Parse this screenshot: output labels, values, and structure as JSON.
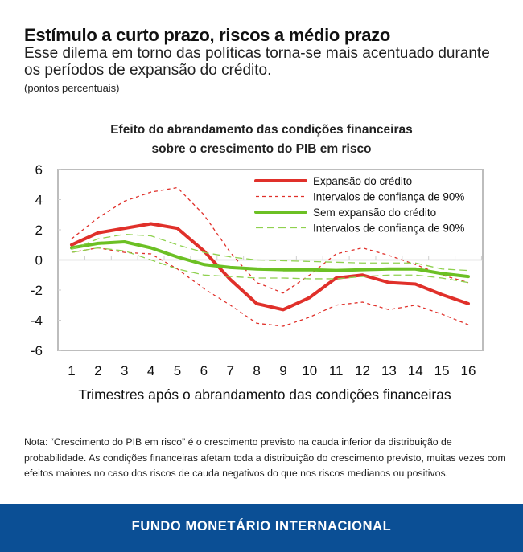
{
  "header": {
    "title": "Estímulo a curto prazo, riscos a médio prazo",
    "subtitle": "Esse dilema em torno das políticas torna-se mais acentuado durante os períodos de expansão do crédito.",
    "units": "(pontos percentuais)"
  },
  "chart_data": {
    "type": "line",
    "title_line1": "Efeito do abrandamento das condições financeiras",
    "title_line2": "sobre o crescimento do PIB em risco",
    "xlabel": "Trimestres após o abrandamento das condições financeiras",
    "ylabel": "",
    "x": [
      1,
      2,
      3,
      4,
      5,
      6,
      7,
      8,
      9,
      10,
      11,
      12,
      13,
      14,
      15,
      16
    ],
    "x_ticks": [
      "1",
      "2",
      "3",
      "4",
      "5",
      "6",
      "7",
      "8",
      "9",
      "10",
      "11",
      "12",
      "13",
      "14",
      "15",
      "16"
    ],
    "ylim": [
      -6,
      6
    ],
    "y_ticks": [
      "6",
      "4",
      "2",
      "0",
      "-2",
      "-4",
      "-6"
    ],
    "y_tick_values": [
      6,
      4,
      2,
      0,
      -2,
      -4,
      -6
    ],
    "legend_position": "top-right",
    "series": [
      {
        "name": "Expansão do crédito",
        "color": "#e0302a",
        "style": "solid",
        "legend": true,
        "values": [
          1.0,
          1.8,
          2.1,
          2.4,
          2.1,
          0.6,
          -1.3,
          -2.9,
          -3.3,
          -2.5,
          -1.2,
          -1.0,
          -1.5,
          -1.6,
          -2.3,
          -2.9
        ]
      },
      {
        "name": "Intervalos de confiança de 90%",
        "color": "#e0302a",
        "style": "dotted",
        "legend": true,
        "values": [
          1.4,
          2.8,
          3.9,
          4.5,
          4.8,
          3.0,
          0.5,
          -1.5,
          -2.2,
          -1.0,
          0.4,
          0.8,
          0.3,
          -0.3,
          -1.0,
          -1.5
        ]
      },
      {
        "name": "Intervalos de confiança de 90% (inferior, expansão)",
        "color": "#e0302a",
        "style": "dotted",
        "legend": false,
        "values": [
          0.5,
          0.8,
          0.5,
          0.4,
          -0.6,
          -1.9,
          -3.0,
          -4.2,
          -4.4,
          -3.8,
          -3.0,
          -2.8,
          -3.3,
          -3.0,
          -3.6,
          -4.3
        ]
      },
      {
        "name": "Sem expansão do crédito",
        "color": "#6cc024",
        "style": "solid",
        "legend": true,
        "values": [
          0.8,
          1.1,
          1.2,
          0.8,
          0.2,
          -0.3,
          -0.5,
          -0.6,
          -0.65,
          -0.65,
          -0.7,
          -0.65,
          -0.6,
          -0.6,
          -0.9,
          -1.1
        ]
      },
      {
        "name": "Intervalos de confiança de 90%",
        "color": "#8fd14f",
        "style": "dashed",
        "legend": true,
        "values": [
          0.7,
          1.4,
          1.7,
          1.6,
          1.0,
          0.5,
          0.2,
          0.0,
          -0.05,
          -0.1,
          -0.15,
          -0.2,
          -0.2,
          -0.2,
          -0.6,
          -0.7
        ]
      },
      {
        "name": "Intervalos de confiança de 90% (inferior, sem expansão)",
        "color": "#8fd14f",
        "style": "dashed",
        "legend": false,
        "values": [
          0.5,
          0.8,
          0.6,
          0.0,
          -0.6,
          -1.0,
          -1.1,
          -1.2,
          -1.2,
          -1.25,
          -1.25,
          -1.1,
          -1.0,
          -1.0,
          -1.2,
          -1.5
        ]
      }
    ]
  },
  "note": "Nota: “Crescimento do PIB em risco” é o crescimento previsto na cauda inferior da distribuição de probabilidade. As condições financeiras afetam toda a distribuição do crescimento previsto, muitas vezes com efeitos maiores no caso dos riscos de cauda negativos do que nos riscos medianos ou positivos.",
  "footer": {
    "org": "FUNDO MONETÁRIO INTERNACIONAL"
  }
}
